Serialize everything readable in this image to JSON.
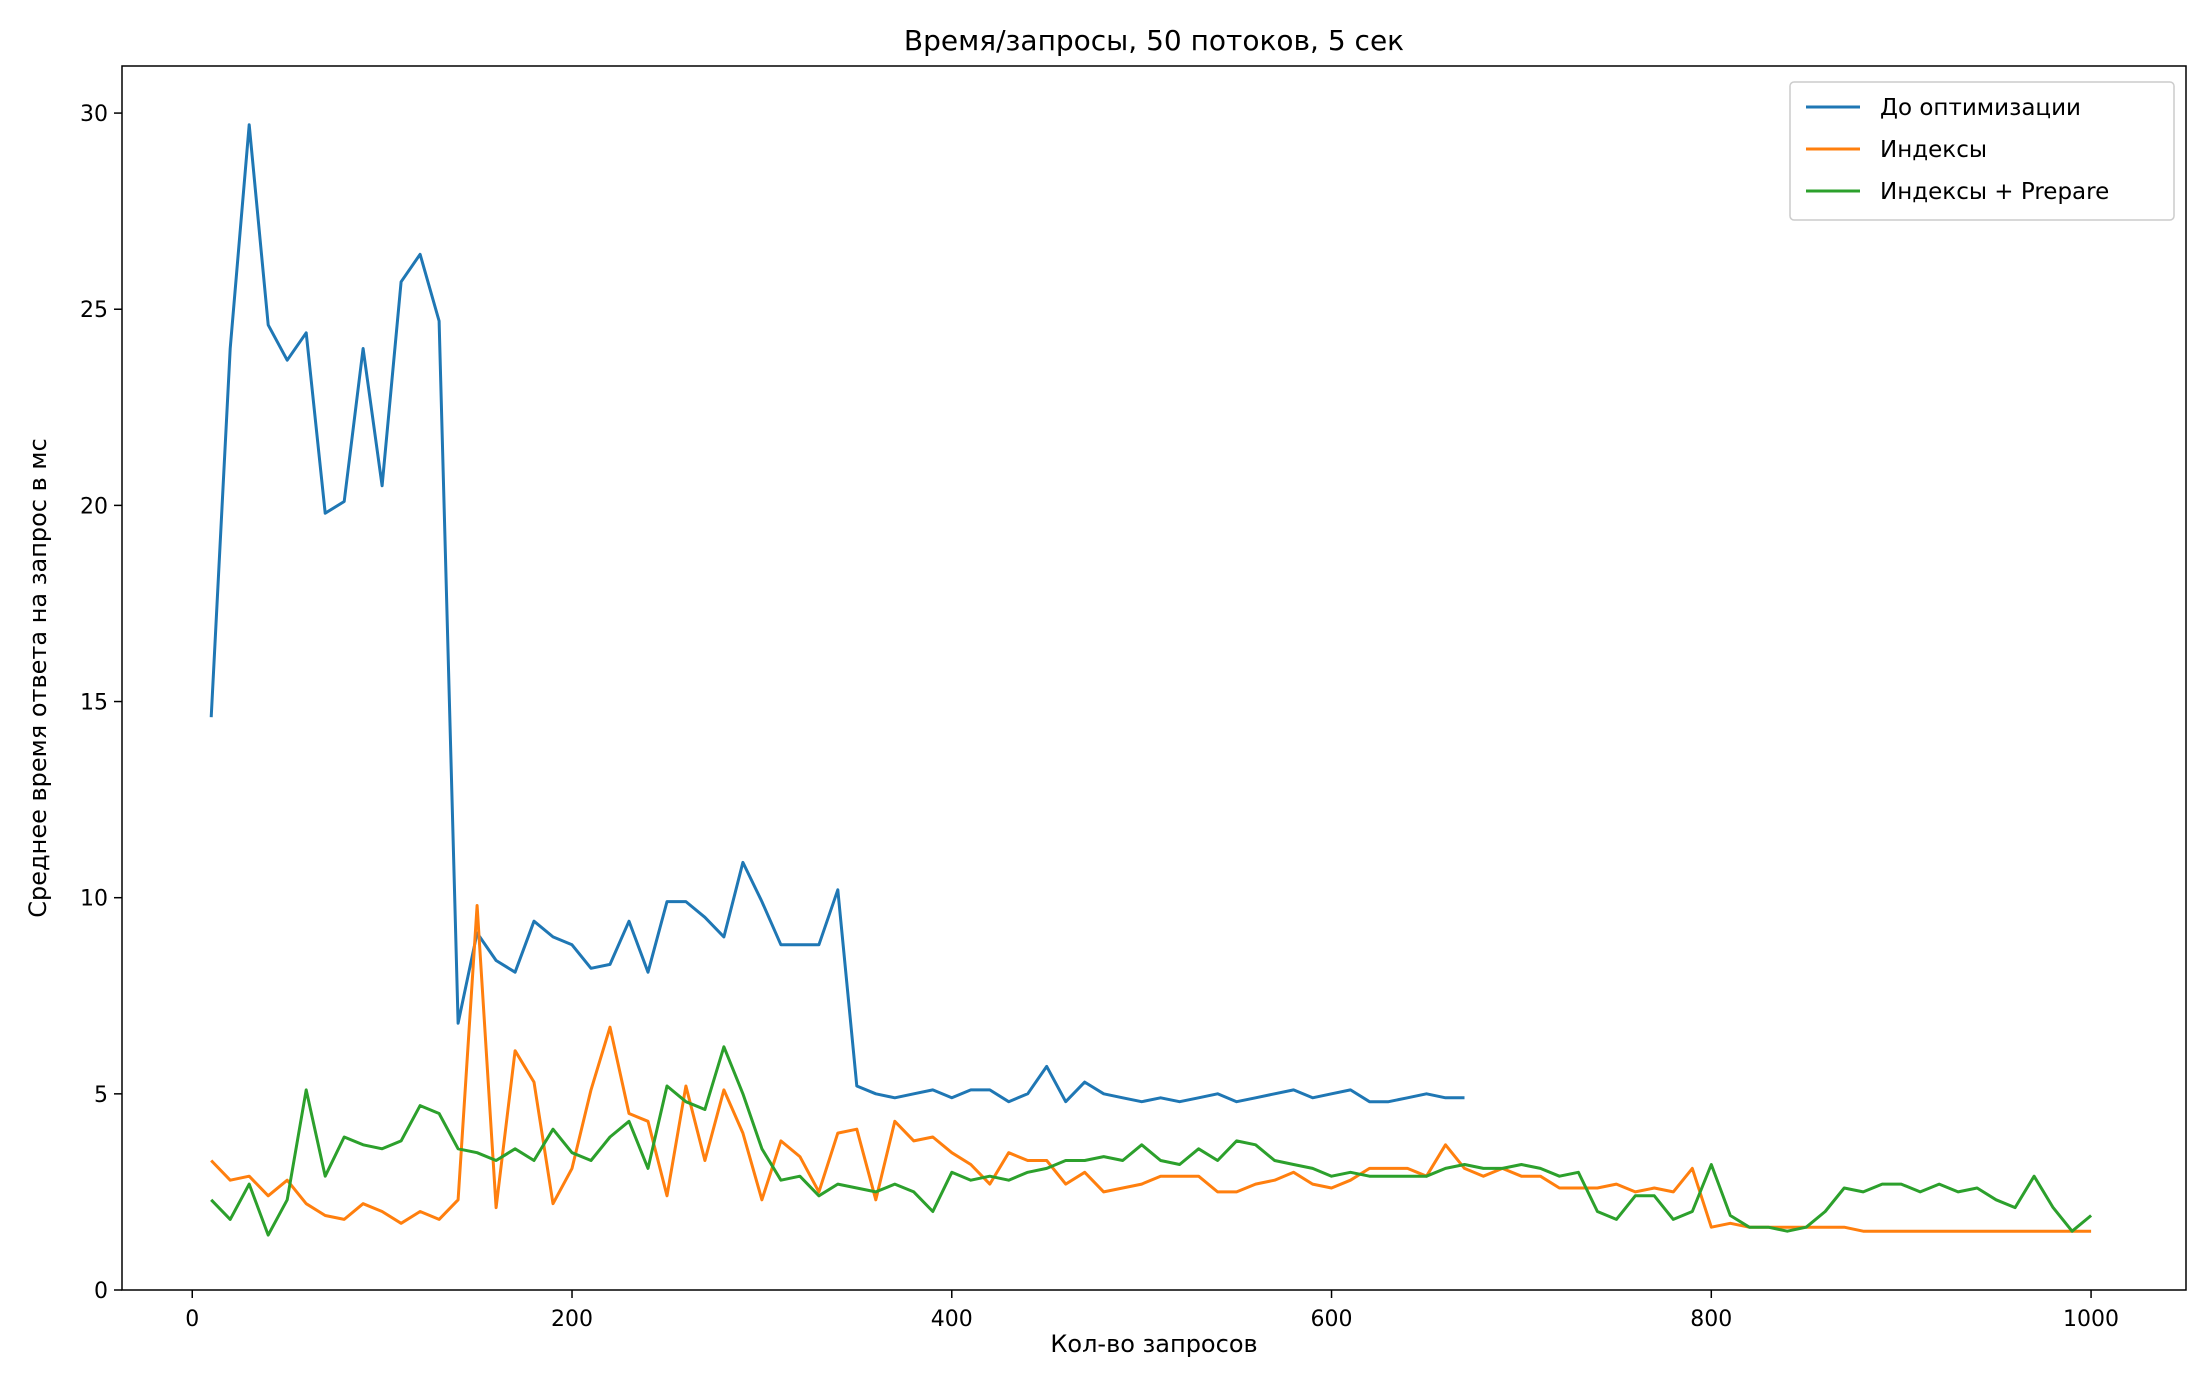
{
  "chart_data": {
    "type": "line",
    "title": "Время/запросы, 50 потоков, 5 сек",
    "xlabel": "Кол-во запросов",
    "ylabel": "Среднее время ответа на запрос в мс",
    "xlim": [
      -37,
      1050
    ],
    "ylim": [
      0,
      31.2
    ],
    "xticks": [
      0,
      200,
      400,
      600,
      800,
      1000
    ],
    "yticks": [
      0,
      5,
      10,
      15,
      20,
      25,
      30
    ],
    "grid": false,
    "legend_position": "top-right",
    "series": [
      {
        "name": "До оптимизации",
        "color": "#1f77b4",
        "x": [
          10,
          20,
          30,
          40,
          50,
          60,
          70,
          80,
          90,
          100,
          110,
          120,
          130,
          140,
          150,
          160,
          170,
          180,
          190,
          200,
          210,
          220,
          230,
          240,
          250,
          260,
          270,
          280,
          290,
          300,
          310,
          320,
          330,
          340,
          350,
          360,
          370,
          380,
          390,
          400,
          410,
          420,
          430,
          440,
          450,
          460,
          470,
          480,
          490,
          500,
          510,
          520,
          530,
          540,
          550,
          560,
          570,
          580,
          590,
          600,
          610,
          620,
          630,
          640,
          650,
          660,
          670
        ],
        "values": [
          14.6,
          24.0,
          29.7,
          24.6,
          23.7,
          24.4,
          19.8,
          20.1,
          24.0,
          20.5,
          25.7,
          26.4,
          24.7,
          6.8,
          9.1,
          8.4,
          8.1,
          9.4,
          9.0,
          8.8,
          8.2,
          8.3,
          9.4,
          8.1,
          9.9,
          9.9,
          9.5,
          9.0,
          10.9,
          9.9,
          8.8,
          8.8,
          8.8,
          10.2,
          5.2,
          5.0,
          4.9,
          5.0,
          5.1,
          4.9,
          5.1,
          5.1,
          4.8,
          5.0,
          5.7,
          4.8,
          5.3,
          5.0,
          4.9,
          4.8,
          4.9,
          4.8,
          4.9,
          5.0,
          4.8,
          4.9,
          5.0,
          5.1,
          4.9,
          5.0,
          5.1,
          4.8,
          4.8,
          4.9,
          5.0,
          4.9,
          4.9
        ]
      },
      {
        "name": "Индексы",
        "color": "#ff7f0e",
        "x": [
          10,
          20,
          30,
          40,
          50,
          60,
          70,
          80,
          90,
          100,
          110,
          120,
          130,
          140,
          150,
          160,
          170,
          180,
          190,
          200,
          210,
          220,
          230,
          240,
          250,
          260,
          270,
          280,
          290,
          300,
          310,
          320,
          330,
          340,
          350,
          360,
          370,
          380,
          390,
          400,
          410,
          420,
          430,
          440,
          450,
          460,
          470,
          480,
          490,
          500,
          510,
          520,
          530,
          540,
          550,
          560,
          570,
          580,
          590,
          600,
          610,
          620,
          630,
          640,
          650,
          660,
          670,
          680,
          690,
          700,
          710,
          720,
          730,
          740,
          750,
          760,
          770,
          780,
          790,
          800,
          810,
          820,
          830,
          840,
          850,
          860,
          870,
          880,
          890,
          900,
          910,
          920,
          930,
          940,
          950,
          960,
          970,
          980,
          990,
          1000
        ],
        "values": [
          3.3,
          2.8,
          2.9,
          2.4,
          2.8,
          2.2,
          1.9,
          1.8,
          2.2,
          2.0,
          1.7,
          2.0,
          1.8,
          2.3,
          9.8,
          2.1,
          6.1,
          5.3,
          2.2,
          3.1,
          5.1,
          6.7,
          4.5,
          4.3,
          2.4,
          5.2,
          3.3,
          5.1,
          4.0,
          2.3,
          3.8,
          3.4,
          2.5,
          4.0,
          4.1,
          2.3,
          4.3,
          3.8,
          3.9,
          3.5,
          3.2,
          2.7,
          3.5,
          3.3,
          3.3,
          2.7,
          3.0,
          2.5,
          2.6,
          2.7,
          2.9,
          2.9,
          2.9,
          2.5,
          2.5,
          2.7,
          2.8,
          3.0,
          2.7,
          2.6,
          2.8,
          3.1,
          3.1,
          3.1,
          2.9,
          3.7,
          3.1,
          2.9,
          3.1,
          2.9,
          2.9,
          2.6,
          2.6,
          2.6,
          2.7,
          2.5,
          2.6,
          2.5,
          3.1,
          1.6,
          1.7,
          1.6,
          1.6,
          1.6,
          1.6,
          1.6,
          1.6,
          1.5,
          1.5,
          1.5,
          1.5,
          1.5,
          1.5,
          1.5,
          1.5,
          1.5,
          1.5,
          1.5,
          1.5,
          1.5
        ]
      },
      {
        "name": "Индексы + Prepare",
        "color": "#2ca02c",
        "x": [
          10,
          20,
          30,
          40,
          50,
          60,
          70,
          80,
          90,
          100,
          110,
          120,
          130,
          140,
          150,
          160,
          170,
          180,
          190,
          200,
          210,
          220,
          230,
          240,
          250,
          260,
          270,
          280,
          290,
          300,
          310,
          320,
          330,
          340,
          350,
          360,
          370,
          380,
          390,
          400,
          410,
          420,
          430,
          440,
          450,
          460,
          470,
          480,
          490,
          500,
          510,
          520,
          530,
          540,
          550,
          560,
          570,
          580,
          590,
          600,
          610,
          620,
          630,
          640,
          650,
          660,
          670,
          680,
          690,
          700,
          710,
          720,
          730,
          740,
          750,
          760,
          770,
          780,
          790,
          800,
          810,
          820,
          830,
          840,
          850,
          860,
          870,
          880,
          890,
          900,
          910,
          920,
          930,
          940,
          950,
          960,
          970,
          980,
          990,
          1000
        ],
        "values": [
          2.3,
          1.8,
          2.7,
          1.4,
          2.3,
          5.1,
          2.9,
          3.9,
          3.7,
          3.6,
          3.8,
          4.7,
          4.5,
          3.6,
          3.5,
          3.3,
          3.6,
          3.3,
          4.1,
          3.5,
          3.3,
          3.9,
          4.3,
          3.1,
          5.2,
          4.8,
          4.6,
          6.2,
          5.0,
          3.6,
          2.8,
          2.9,
          2.4,
          2.7,
          2.6,
          2.5,
          2.7,
          2.5,
          2.0,
          3.0,
          2.8,
          2.9,
          2.8,
          3.0,
          3.1,
          3.3,
          3.3,
          3.4,
          3.3,
          3.7,
          3.3,
          3.2,
          3.6,
          3.3,
          3.8,
          3.7,
          3.3,
          3.2,
          3.1,
          2.9,
          3.0,
          2.9,
          2.9,
          2.9,
          2.9,
          3.1,
          3.2,
          3.1,
          3.1,
          3.2,
          3.1,
          2.9,
          3.0,
          2.0,
          1.8,
          2.4,
          2.4,
          1.8,
          2.0,
          3.2,
          1.9,
          1.6,
          1.6,
          1.5,
          1.6,
          2.0,
          2.6,
          2.5,
          2.7,
          2.7,
          2.5,
          2.7,
          2.5,
          2.6,
          2.3,
          2.1,
          2.9,
          2.1,
          1.5,
          1.9
        ]
      }
    ]
  }
}
